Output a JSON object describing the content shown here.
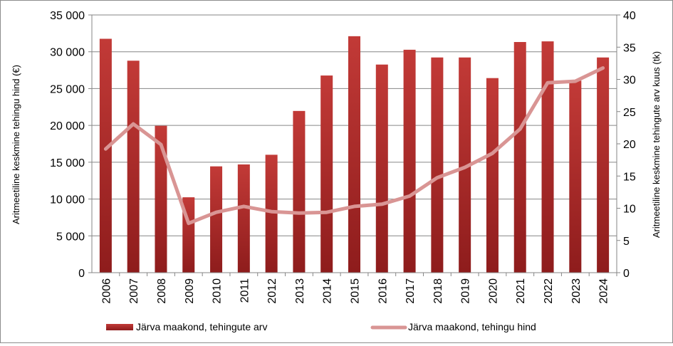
{
  "chart_data": {
    "type": "bar",
    "categories": [
      "2006",
      "2007",
      "2008",
      "2009",
      "2010",
      "2011",
      "2012",
      "2013",
      "2014",
      "2015",
      "2016",
      "2017",
      "2018",
      "2019",
      "2020",
      "2021",
      "2022",
      "2023",
      "2024"
    ],
    "series": [
      {
        "name": "Järva maakond, tehingute arv",
        "type": "bar",
        "axis": "right",
        "color": "#b22a2a",
        "values": [
          36.3,
          32.9,
          22.8,
          11.7,
          16.5,
          16.8,
          18.3,
          25.1,
          30.6,
          36.7,
          32.3,
          34.6,
          33.4,
          33.4,
          30.2,
          35.8,
          35.9,
          29.8,
          33.4
        ]
      },
      {
        "name": "Järva maakond, tehingu hind",
        "type": "line",
        "axis": "left",
        "color": "#d99594",
        "values": [
          16800,
          20200,
          17400,
          6700,
          8200,
          9000,
          8300,
          8100,
          8200,
          9000,
          9300,
          10400,
          12900,
          14300,
          16200,
          19500,
          25800,
          26000,
          27800
        ]
      }
    ],
    "y_left": {
      "label": "Aritmeetiline keskmine tehingu hind (€)",
      "range": [
        0,
        35000
      ],
      "ticks": [
        0,
        5000,
        10000,
        15000,
        20000,
        25000,
        30000,
        35000
      ],
      "tick_labels": [
        "0",
        "5 000",
        "10 000",
        "15 000",
        "20 000",
        "25 000",
        "30 000",
        "35 000"
      ]
    },
    "y_right": {
      "label": "Aritmeetiline keskmine tehingute arv kuus (tk)",
      "range": [
        0,
        40
      ],
      "ticks": [
        0,
        5,
        10,
        15,
        20,
        25,
        30,
        35,
        40
      ],
      "tick_labels": [
        "0",
        "5",
        "10",
        "15",
        "20",
        "25",
        "30",
        "35",
        "40"
      ]
    },
    "grid": true,
    "legend": "bottom"
  }
}
